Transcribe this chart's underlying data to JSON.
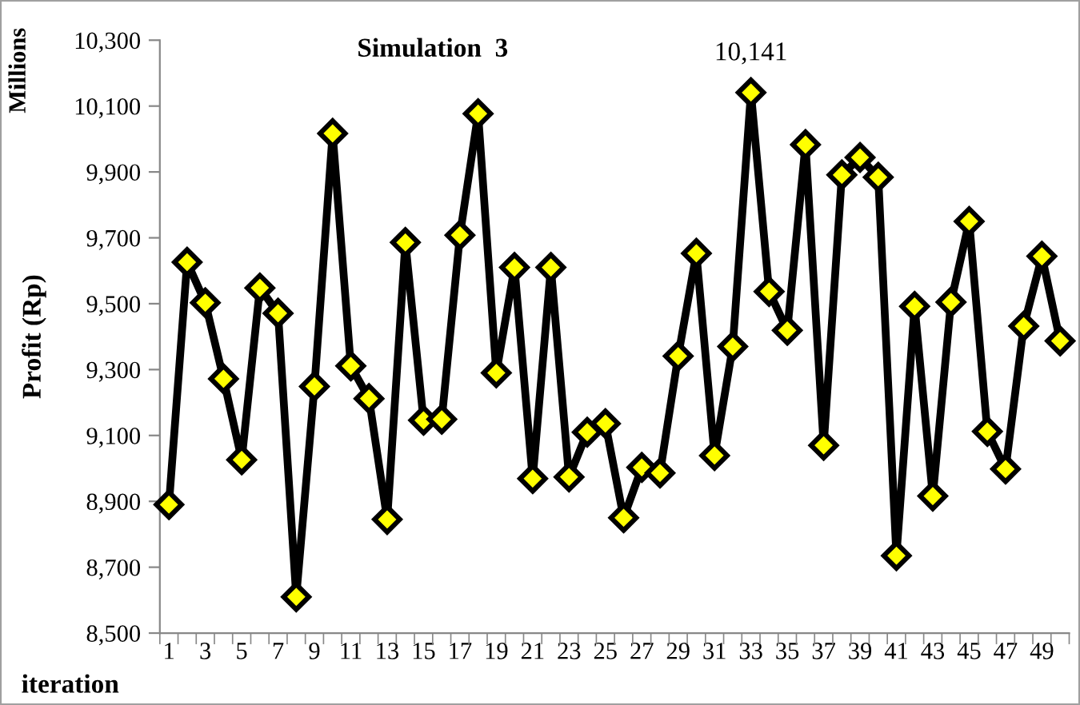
{
  "chart_data": {
    "type": "line",
    "title": "Simulation  3",
    "xlabel": "iteration",
    "ylabel": "Profit (Rp)",
    "annotations": [
      "Millions"
    ],
    "categories": [
      "1",
      null,
      "3",
      null,
      "5",
      null,
      "7",
      null,
      "9",
      null,
      "11",
      null,
      "13",
      null,
      "15",
      null,
      "17",
      null,
      "19",
      null,
      "21",
      null,
      "23",
      null,
      "25",
      null,
      "27",
      null,
      "29",
      null,
      "31",
      null,
      "33",
      null,
      "35",
      null,
      "37",
      null,
      "39",
      null,
      "41",
      null,
      "43",
      null,
      "45",
      null,
      "47",
      null,
      "49",
      null
    ],
    "series": [
      {
        "color": "#000000",
        "values": [
          8890,
          9626,
          9503,
          9272,
          9026,
          9548,
          9471,
          8610,
          9249,
          10017,
          9311,
          9212,
          8845,
          9686,
          9146,
          9149,
          9708,
          10077,
          9290,
          9610,
          8969,
          9610,
          8974,
          9110,
          9136,
          8850,
          9003,
          8986,
          9341,
          9653,
          9039,
          9370,
          10141,
          9537,
          9419,
          9983,
          9070,
          9891,
          9944,
          9884,
          8735,
          9492,
          8916,
          9505,
          9750,
          9112,
          8998,
          9432,
          9644,
          9387
        ],
        "value_labels": [
          null,
          null,
          null,
          null,
          null,
          null,
          null,
          null,
          null,
          null,
          null,
          null,
          null,
          null,
          null,
          null,
          null,
          null,
          null,
          null,
          null,
          null,
          null,
          null,
          null,
          null,
          null,
          null,
          null,
          null,
          null,
          null,
          "10,141",
          null,
          null,
          null,
          null,
          null,
          null,
          null,
          null,
          null,
          null,
          null,
          null,
          null,
          null,
          null,
          null,
          null
        ],
        "marker": "diamond"
      }
    ],
    "ylim": [
      8500,
      10300
    ],
    "yticks": [
      {
        "value": 8500,
        "label": "8,500"
      },
      {
        "value": 8700,
        "label": "8,700"
      },
      {
        "value": 8900,
        "label": "8,900"
      },
      {
        "value": 9100,
        "label": "9,100"
      },
      {
        "value": 9300,
        "label": "9,300"
      },
      {
        "value": 9500,
        "label": "9,500"
      },
      {
        "value": 9700,
        "label": "9,700"
      },
      {
        "value": 9900,
        "label": "9,900"
      },
      {
        "value": 10100,
        "label": "10,100"
      },
      {
        "value": 10300,
        "label": "10,300"
      }
    ],
    "grid": false,
    "legend": false,
    "line_style": "solid"
  }
}
